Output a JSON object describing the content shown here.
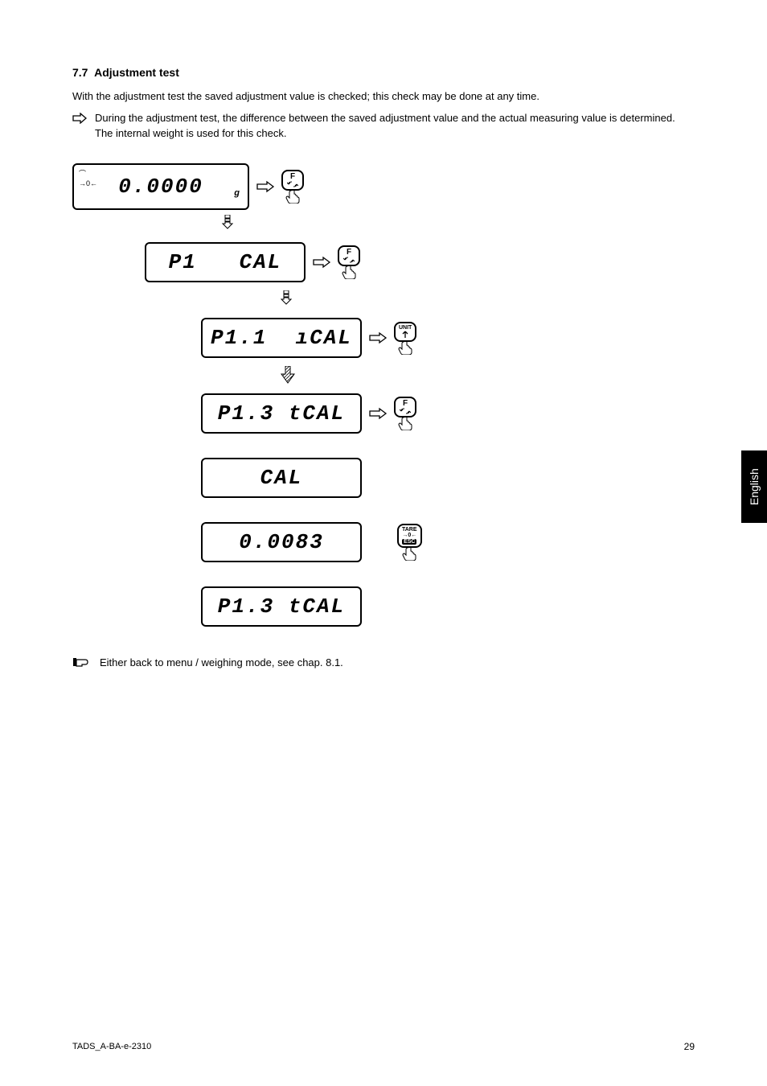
{
  "header": {
    "section_number": "7.7",
    "section_title": "Adjustment test"
  },
  "intro": "With the adjustment test the saved adjustment value is checked; this check may be done at any time.",
  "note": "During the adjustment test, the difference between the saved adjustment value and the actual measuring value is determined. The internal weight is used for this check.",
  "diagram": {
    "rows": [
      {
        "indent": 1,
        "lcd_width": "wide",
        "display": "0.0000",
        "left_sym_top": "⌒",
        "left_sym_bot": "→0←",
        "unit": "g",
        "harrow": true,
        "key_type": "F",
        "hand": true
      },
      {
        "vconnector": true,
        "align": 2
      },
      {
        "indent": 2,
        "lcd_width": "main",
        "display": "P1   CAL",
        "harrow": true,
        "key_type": "F",
        "hand": true
      },
      {
        "vconnector": true,
        "align": 3
      },
      {
        "indent": 3,
        "lcd_width": "main",
        "display": "P1.1  ıCAL",
        "harrow": true,
        "key_type": "UNIT",
        "hand": true
      },
      {
        "vconnector": true,
        "align": 3,
        "hatched": true
      },
      {
        "indent": 3,
        "lcd_width": "main",
        "display": "P1.3 tCAL",
        "harrow": true,
        "key_type": "F",
        "hand": true
      },
      {
        "spacer": true
      },
      {
        "indent": 3,
        "lcd_width": "main",
        "display": "CAL"
      },
      {
        "spacer": true
      },
      {
        "indent": 3,
        "lcd_width": "main",
        "display": "0.0083",
        "key_type": "TARE",
        "hand": true,
        "no_harrow": true
      },
      {
        "spacer": true
      },
      {
        "indent": 3,
        "lcd_width": "main",
        "display": "P1.3 tCAL"
      }
    ]
  },
  "bottom_note": "Either back to menu / weighing mode, see chap. 8.1.",
  "side_tab": "English",
  "footer_code": "TADS_A-BA-e-2310",
  "page_number": "29",
  "colors": {
    "text": "#000000",
    "background": "#ffffff",
    "tab_bg": "#000000",
    "tab_text": "#ffffff"
  }
}
